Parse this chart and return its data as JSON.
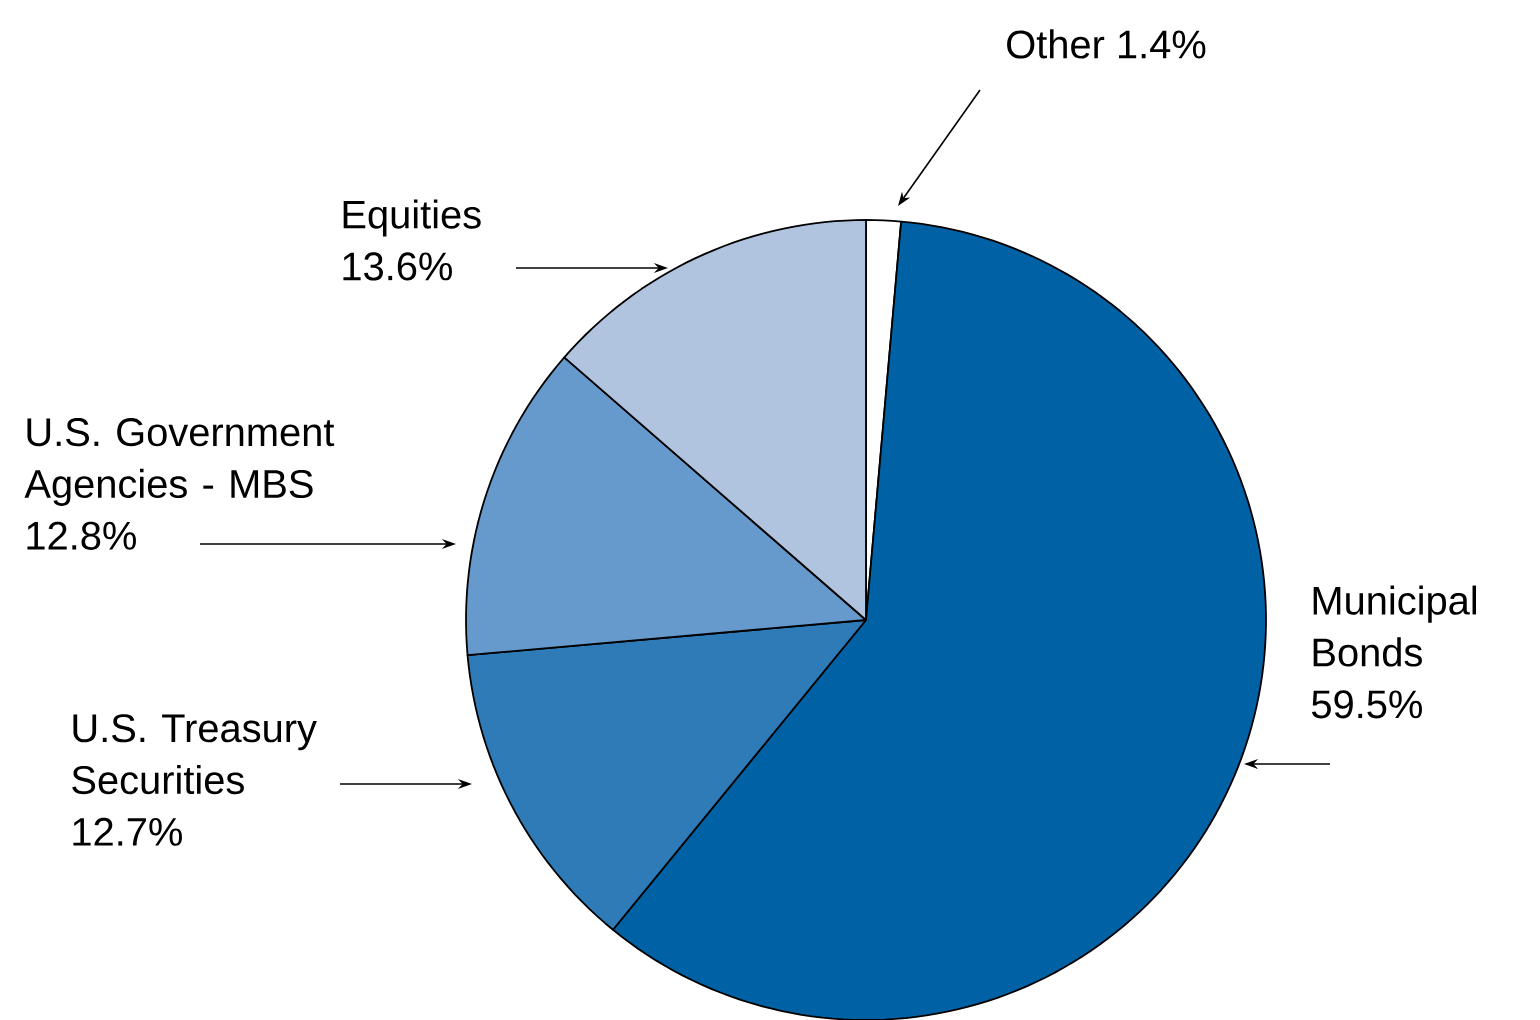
{
  "chart_data": {
    "type": "pie",
    "categories": [
      "Other",
      "Municipal Bonds",
      "U.S. Treasury Securities",
      "U.S. Government Agencies - MBS",
      "Equities"
    ],
    "values": [
      1.4,
      59.5,
      12.7,
      12.8,
      13.6
    ],
    "value_labels": [
      "1.4%",
      "59.5%",
      "12.7%",
      "12.8%",
      "13.6%"
    ],
    "colors": [
      "#ffffff",
      "#0061a4",
      "#2e7bb8",
      "#6699cc",
      "#b0c4e0"
    ]
  }
}
